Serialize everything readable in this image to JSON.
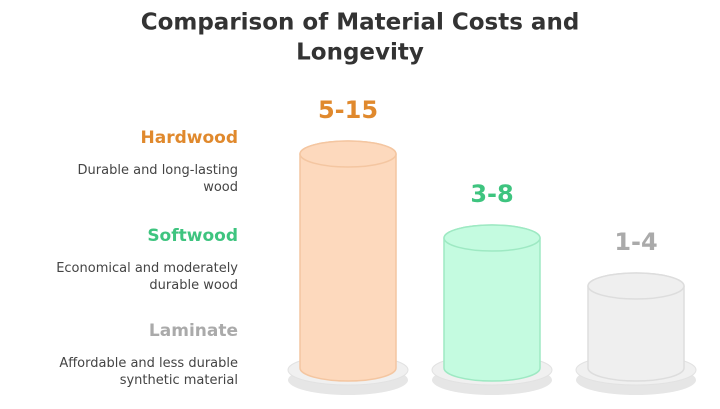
{
  "title": [
    "Comparison of Material Costs and",
    "Longevity"
  ],
  "items": [
    {
      "name": "Hardwood",
      "description": [
        "Durable and long-lasting",
        "wood"
      ],
      "color": "#e0892d",
      "fill": "#fdd9bd",
      "stroke": "#f4c6a1",
      "range": {
        "low": 5,
        "high": 15,
        "label": "5-15"
      }
    },
    {
      "name": "Softwood",
      "description": [
        "Economical and moderately",
        "durable wood"
      ],
      "color": "#3ec47f",
      "fill": "#c4fbe0",
      "stroke": "#9ee9c3",
      "range": {
        "low": 3,
        "high": 8,
        "label": "3-8"
      }
    },
    {
      "name": "Laminate",
      "description": [
        "Affordable and less durable",
        "synthetic material"
      ],
      "color": "#aaaaaa",
      "fill": "#efefef",
      "stroke": "#dddddd",
      "range": {
        "low": 1,
        "high": 4,
        "label": "1-4"
      }
    }
  ]
}
